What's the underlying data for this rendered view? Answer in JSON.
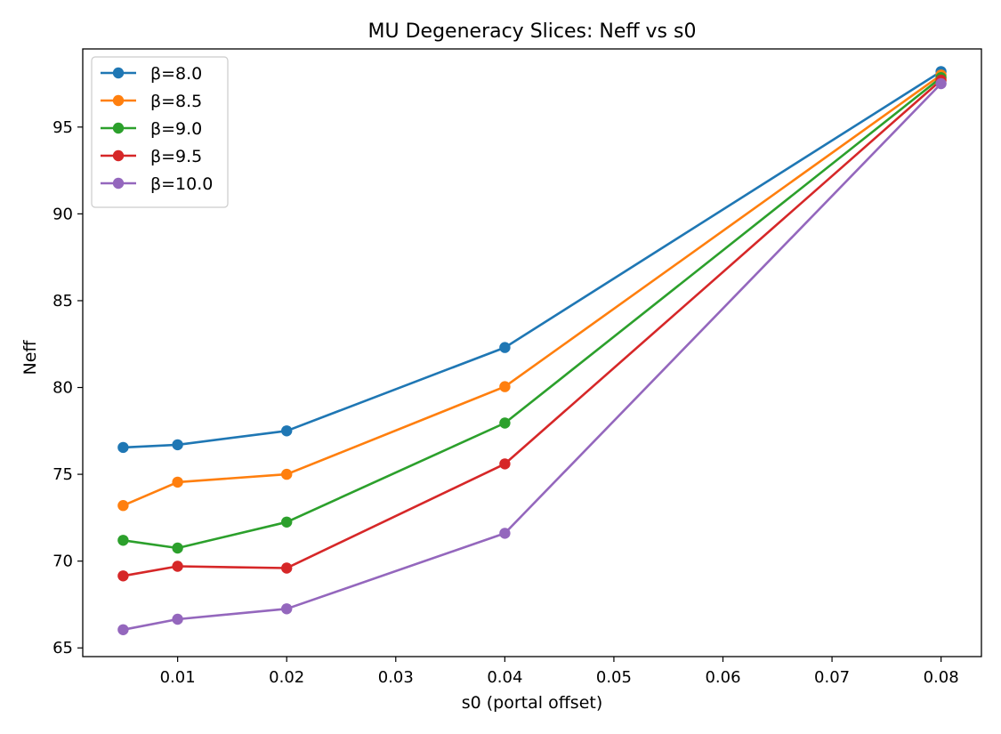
{
  "chart_data": {
    "type": "line",
    "title": "MU Degeneracy Slices: Neff vs s0",
    "xlabel": "s0 (portal offset)",
    "ylabel": "Neff",
    "x": [
      0.005,
      0.01,
      0.02,
      0.04,
      0.08
    ],
    "xlim": [
      0.0013,
      0.0837
    ],
    "ylim": [
      64.5,
      99.5
    ],
    "xticks": [
      0.01,
      0.02,
      0.03,
      0.04,
      0.05,
      0.06,
      0.07,
      0.08
    ],
    "xtick_labels": [
      "0.01",
      "0.02",
      "0.03",
      "0.04",
      "0.05",
      "0.06",
      "0.07",
      "0.08"
    ],
    "yticks": [
      65,
      70,
      75,
      80,
      85,
      90,
      95
    ],
    "ytick_labels": [
      "65",
      "70",
      "75",
      "80",
      "85",
      "90",
      "95"
    ],
    "grid": false,
    "legend_position": "top-left",
    "series": [
      {
        "name": "β=8.0",
        "color": "#1f77b4",
        "values": [
          76.55,
          76.7,
          77.5,
          82.3,
          98.2
        ]
      },
      {
        "name": "β=8.5",
        "color": "#ff7f0e",
        "values": [
          73.2,
          74.55,
          75.0,
          80.05,
          98.0
        ]
      },
      {
        "name": "β=9.0",
        "color": "#2ca02c",
        "values": [
          71.2,
          70.75,
          72.25,
          77.95,
          97.85
        ]
      },
      {
        "name": "β=9.5",
        "color": "#d62728",
        "values": [
          69.15,
          69.7,
          69.6,
          75.6,
          97.7
        ]
      },
      {
        "name": "β=10.0",
        "color": "#9467bd",
        "values": [
          66.05,
          66.65,
          67.25,
          71.6,
          97.5
        ]
      }
    ]
  }
}
